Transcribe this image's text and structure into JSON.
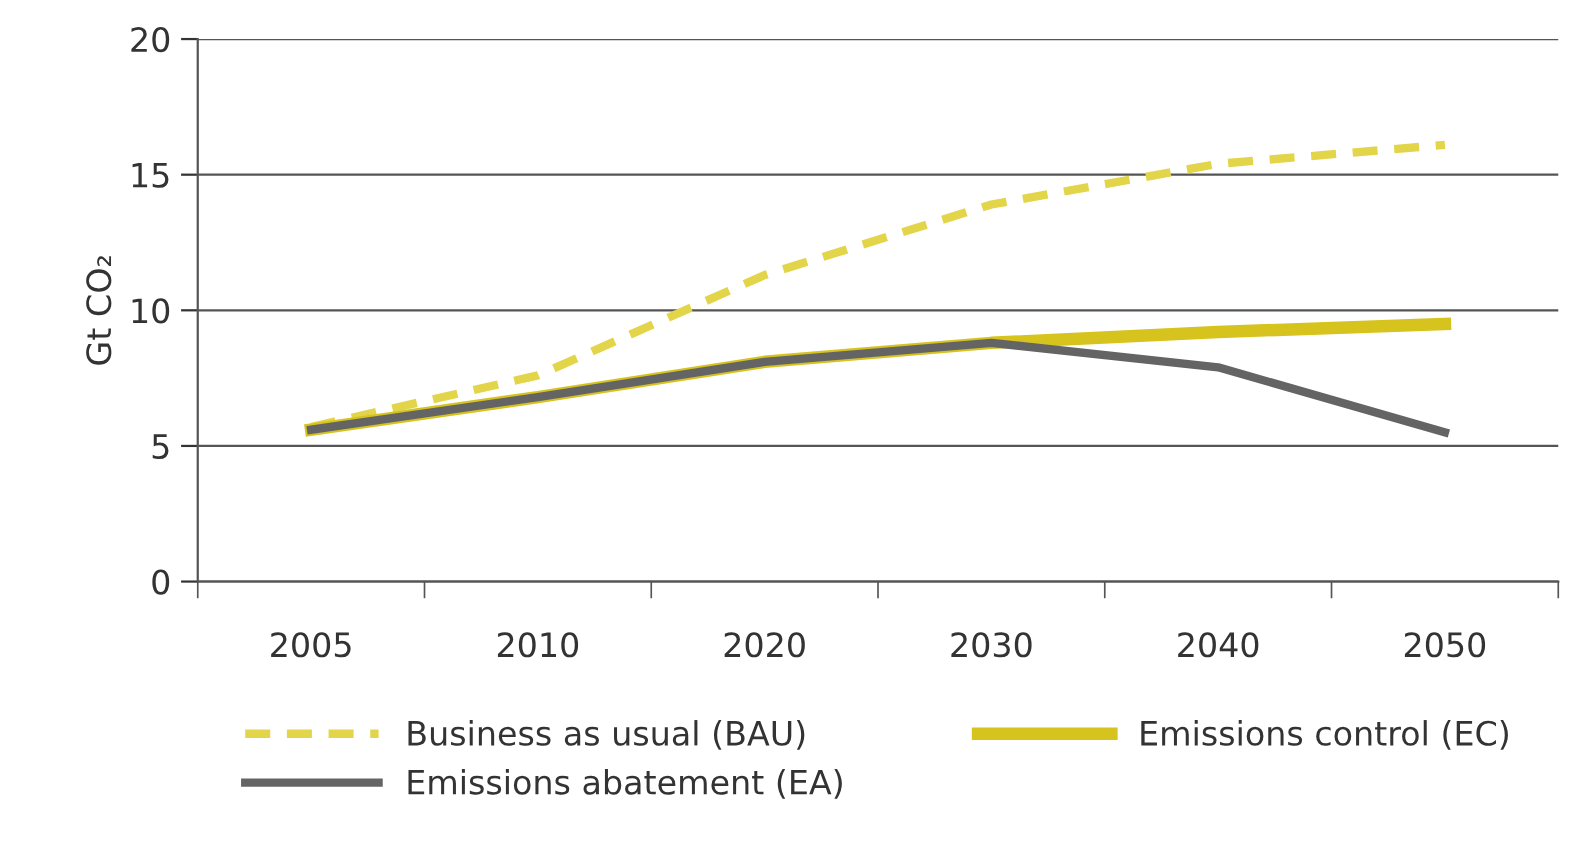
{
  "chart_data": {
    "type": "line",
    "ylabel": "Gt CO₂",
    "categories": [
      "2005",
      "2010",
      "2020",
      "2030",
      "2040",
      "2050"
    ],
    "ylim": [
      0,
      20
    ],
    "yticks": [
      0,
      5,
      10,
      15,
      20
    ],
    "grid": "y",
    "legend": "bottom",
    "marker": "none",
    "series": [
      {
        "name": "Business as usual (BAU)",
        "color": "#e3d54a",
        "line_style": "dashed",
        "values": [
          5.7,
          7.6,
          11.3,
          13.9,
          15.4,
          16.1
        ]
      },
      {
        "name": "Emissions control (EC)",
        "color": "#d6c31e",
        "line_style": "solid",
        "values": [
          5.6,
          6.8,
          8.1,
          8.8,
          9.2,
          9.5
        ]
      },
      {
        "name": "Emissions abatement (EA)",
        "color": "#646464",
        "line_style": "solid",
        "values": [
          5.6,
          6.8,
          8.1,
          8.8,
          7.9,
          5.5
        ]
      }
    ]
  }
}
